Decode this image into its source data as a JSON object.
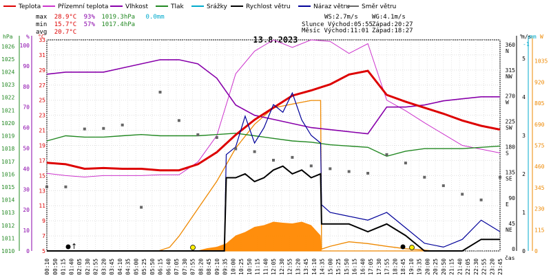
{
  "chart_data": {
    "type": "line",
    "title": "13.8.2023",
    "legend": [
      {
        "key": "teplota",
        "label": "Teplota",
        "color": "#dd0000"
      },
      {
        "key": "rosny_bod",
        "label": "Přízemní teplota",
        "color": "#cc33cc"
      },
      {
        "key": "vlhkost",
        "label": "Vlhkost",
        "color": "#8800aa"
      },
      {
        "key": "tlak",
        "label": "Tlak",
        "color": "#228822"
      },
      {
        "key": "srazky",
        "label": "Srážky",
        "color": "#00aacc"
      },
      {
        "key": "rychlost",
        "label": "Rychlost větru",
        "color": "#000000"
      },
      {
        "key": "naraz",
        "label": "Náraz větru",
        "color": "#000099"
      },
      {
        "key": "smer",
        "label": "Směr větru",
        "color": "#666666"
      }
    ],
    "stats": {
      "max": {
        "label": "max",
        "temp": "28.9°C",
        "hum": "93%",
        "press": "1019.3hPa",
        "rain": "0.0mm"
      },
      "min": {
        "label": "min",
        "temp": "15.7°C",
        "hum": "57%",
        "press": "1017.4hPa"
      },
      "avg": {
        "label": "avg",
        "temp": "20.7°C"
      }
    },
    "wind_info": {
      "ws": "WS:2.7m/s",
      "wg": "WG:4.1m/s"
    },
    "sun": {
      "rise": "Slunce Východ:05:55",
      "set": "Západ:20:27"
    },
    "moon": {
      "rise": "Měsíc  Východ:11:01",
      "set": "Západ:18:27"
    },
    "axes": {
      "hpa": {
        "unit": "hPa",
        "ticks": [
          "1026",
          "1025",
          "1024",
          "1023",
          "1022",
          "1021",
          "1020",
          "1019",
          "1018",
          "1017",
          "1016",
          "1015",
          "1014",
          "1013",
          "1012",
          "1011",
          "1010"
        ],
        "range": [
          1010,
          1026.5
        ]
      },
      "pct": {
        "unit": "%",
        "ticks": [
          "100",
          "90",
          "80",
          "70",
          "60",
          "50",
          "40",
          "30",
          "20",
          "10",
          "0"
        ],
        "range": [
          0,
          100
        ]
      },
      "temp": {
        "unit": "°C",
        "ticks": [
          "33",
          "31",
          "29",
          "27",
          "25",
          "23",
          "21",
          "19",
          "17",
          "15",
          "13",
          "11",
          "9",
          "7",
          "5"
        ],
        "range": [
          5,
          33
        ]
      },
      "dir": {
        "unit": "°",
        "ticks": [
          {
            "v": "360",
            "s": "N"
          },
          {
            "v": "315",
            "s": "NW"
          },
          {
            "v": "270",
            "s": "W"
          },
          {
            "v": "225",
            "s": "SW"
          },
          {
            "v": "180",
            "s": "S"
          },
          {
            "v": "135",
            "s": "SE"
          },
          {
            "v": "90",
            "s": "E"
          },
          {
            "v": "45",
            "s": "NE"
          },
          {
            "v": "0",
            "s": ""
          }
        ]
      },
      "ms": {
        "unit": "m/s",
        "ticks": [
          "5",
          "4",
          "3",
          "2",
          "1",
          "0"
        ],
        "range": [
          0,
          5.3
        ]
      },
      "mm": {
        "unit": "mm",
        "ticks": [
          "-1"
        ]
      },
      "w": {
        "unit": "W",
        "ticks": [
          "1035",
          "920",
          "805",
          "690",
          "575",
          "460",
          "345",
          "230",
          "115",
          "0"
        ],
        "range": [
          0,
          1150
        ]
      },
      "x": {
        "unit": "čas",
        "ticks": [
          "00:10",
          "00:50",
          "01:15",
          "01:40",
          "02:05",
          "02:30",
          "02:55",
          "03:20",
          "03:45",
          "04:10",
          "04:35",
          "05:00",
          "05:25",
          "05:50",
          "06:15",
          "06:40",
          "07:05",
          "07:30",
          "07:55",
          "08:20",
          "08:45",
          "09:10",
          "09:35",
          "10:00",
          "10:25",
          "10:50",
          "11:15",
          "11:40",
          "12:05",
          "12:30",
          "12:55",
          "13:20",
          "13:45",
          "14:10",
          "14:35",
          "15:00",
          "15:25",
          "15:50",
          "16:15",
          "16:40",
          "17:05",
          "17:30",
          "17:55",
          "18:20",
          "18:45",
          "19:10",
          "19:35",
          "20:00",
          "20:25",
          "20:50",
          "21:15",
          "21:40",
          "22:05",
          "22:30",
          "22:55",
          "23:20",
          "23:45"
        ]
      }
    },
    "series": [
      {
        "key": "teplota",
        "name": "Teplota",
        "x": [
          0,
          1,
          2,
          3,
          4,
          5,
          6,
          7,
          8,
          9,
          10,
          11,
          12,
          13,
          14,
          15,
          16,
          17,
          18,
          19,
          20,
          21,
          22,
          23,
          24
        ],
        "values": [
          16.7,
          16.5,
          15.9,
          16.0,
          15.9,
          15.9,
          15.7,
          15.7,
          16.5,
          18.1,
          20.4,
          22.4,
          24.0,
          25.6,
          26.3,
          27.1,
          28.4,
          28.9,
          25.7,
          24.8,
          24.0,
          23.2,
          22.3,
          21.6,
          21.1
        ]
      },
      {
        "key": "rosny_bod",
        "name": "Přízemní teplota",
        "x": [
          0,
          1,
          2,
          3,
          4,
          5,
          6,
          7,
          8,
          9,
          10,
          11,
          12,
          13,
          14,
          15,
          16,
          17,
          18,
          19,
          20,
          21,
          22,
          23,
          24
        ],
        "values": [
          15.3,
          15.0,
          14.8,
          15.0,
          15.0,
          15.0,
          15.1,
          15.1,
          16.8,
          20.3,
          28.5,
          31.5,
          33.0,
          32.0,
          33.0,
          32.8,
          31.2,
          32.5,
          25.0,
          23.6,
          22.0,
          20.5,
          19.0,
          18.5,
          18.0
        ]
      },
      {
        "key": "vlhkost",
        "name": "Vlhkost",
        "x": [
          0,
          1,
          2,
          3,
          4,
          5,
          6,
          7,
          8,
          9,
          10,
          11,
          12,
          13,
          14,
          15,
          16,
          17,
          18,
          19,
          20,
          21,
          22,
          23,
          24
        ],
        "values": [
          86,
          87,
          87,
          87,
          89,
          91,
          93,
          93,
          91,
          84,
          71,
          66,
          64,
          62,
          60,
          59,
          58,
          57,
          70,
          70,
          71,
          73,
          74,
          75,
          75
        ]
      },
      {
        "key": "tlak",
        "name": "Tlak",
        "x": [
          0,
          1,
          2,
          3,
          4,
          5,
          6,
          7,
          8,
          9,
          10,
          11,
          12,
          13,
          14,
          15,
          16,
          17,
          18,
          19,
          20,
          21,
          22,
          23,
          24
        ],
        "values": [
          1018.6,
          1019.0,
          1018.9,
          1018.9,
          1019.0,
          1019.1,
          1019.0,
          1019.0,
          1019.0,
          1019.1,
          1019.2,
          1019.0,
          1018.8,
          1018.6,
          1018.5,
          1018.3,
          1018.2,
          1018.1,
          1017.4,
          1017.8,
          1018.0,
          1018.0,
          1018.0,
          1018.1,
          1018.2
        ]
      },
      {
        "key": "rychlost",
        "name": "Rychlost větru",
        "x": [
          0,
          9.4,
          9.5,
          10,
          10.5,
          11,
          11.5,
          12,
          12.5,
          13,
          13.5,
          14,
          14.5,
          14.55,
          15,
          16,
          17,
          18,
          19,
          20,
          21,
          22,
          23,
          24
        ],
        "values": [
          0,
          0,
          1.9,
          1.9,
          2.0,
          1.8,
          1.9,
          2.1,
          2.2,
          2.0,
          2.1,
          1.9,
          2.0,
          0.7,
          0.7,
          0.7,
          0.5,
          0.7,
          0.4,
          0.0,
          0.0,
          0.0,
          0.3,
          0.3
        ]
      },
      {
        "key": "naraz",
        "name": "Náraz větru",
        "x": [
          0,
          9.4,
          9.5,
          10,
          10.5,
          11,
          11.5,
          12,
          12.5,
          13,
          13.5,
          14,
          14.5,
          14.55,
          15,
          16,
          17,
          18,
          19,
          20,
          21,
          22,
          23,
          24
        ],
        "values": [
          0,
          0,
          2.5,
          2.7,
          3.5,
          2.8,
          3.2,
          3.8,
          3.6,
          4.1,
          3.4,
          3.0,
          2.8,
          1.2,
          1.0,
          0.9,
          0.8,
          1.0,
          0.6,
          0.2,
          0.1,
          0.3,
          0.8,
          0.5
        ]
      },
      {
        "key": "smer",
        "name": "Směr větru",
        "x": [
          0,
          1,
          2,
          3,
          4,
          5,
          6,
          7,
          8,
          9,
          10,
          11,
          12,
          13,
          14,
          15,
          16,
          17,
          18,
          19,
          20,
          21,
          22,
          23,
          24
        ],
        "values": [
          113,
          113,
          215,
          216,
          222,
          77,
          280,
          230,
          205,
          200,
          180,
          175,
          160,
          165,
          150,
          145,
          140,
          137,
          170,
          155,
          130,
          115,
          100,
          90,
          130
        ]
      },
      {
        "key": "slunce",
        "name": "Slunce",
        "x": [
          0,
          5.9,
          6.5,
          7,
          8,
          9,
          10,
          11,
          12,
          13,
          14,
          14.5,
          14.55,
          15,
          16,
          17,
          18,
          19,
          20,
          20.45
        ],
        "values": [
          0,
          0,
          20,
          80,
          230,
          380,
          560,
          690,
          780,
          800,
          820,
          820,
          10,
          25,
          50,
          40,
          25,
          12,
          5,
          0
        ]
      }
    ]
  }
}
